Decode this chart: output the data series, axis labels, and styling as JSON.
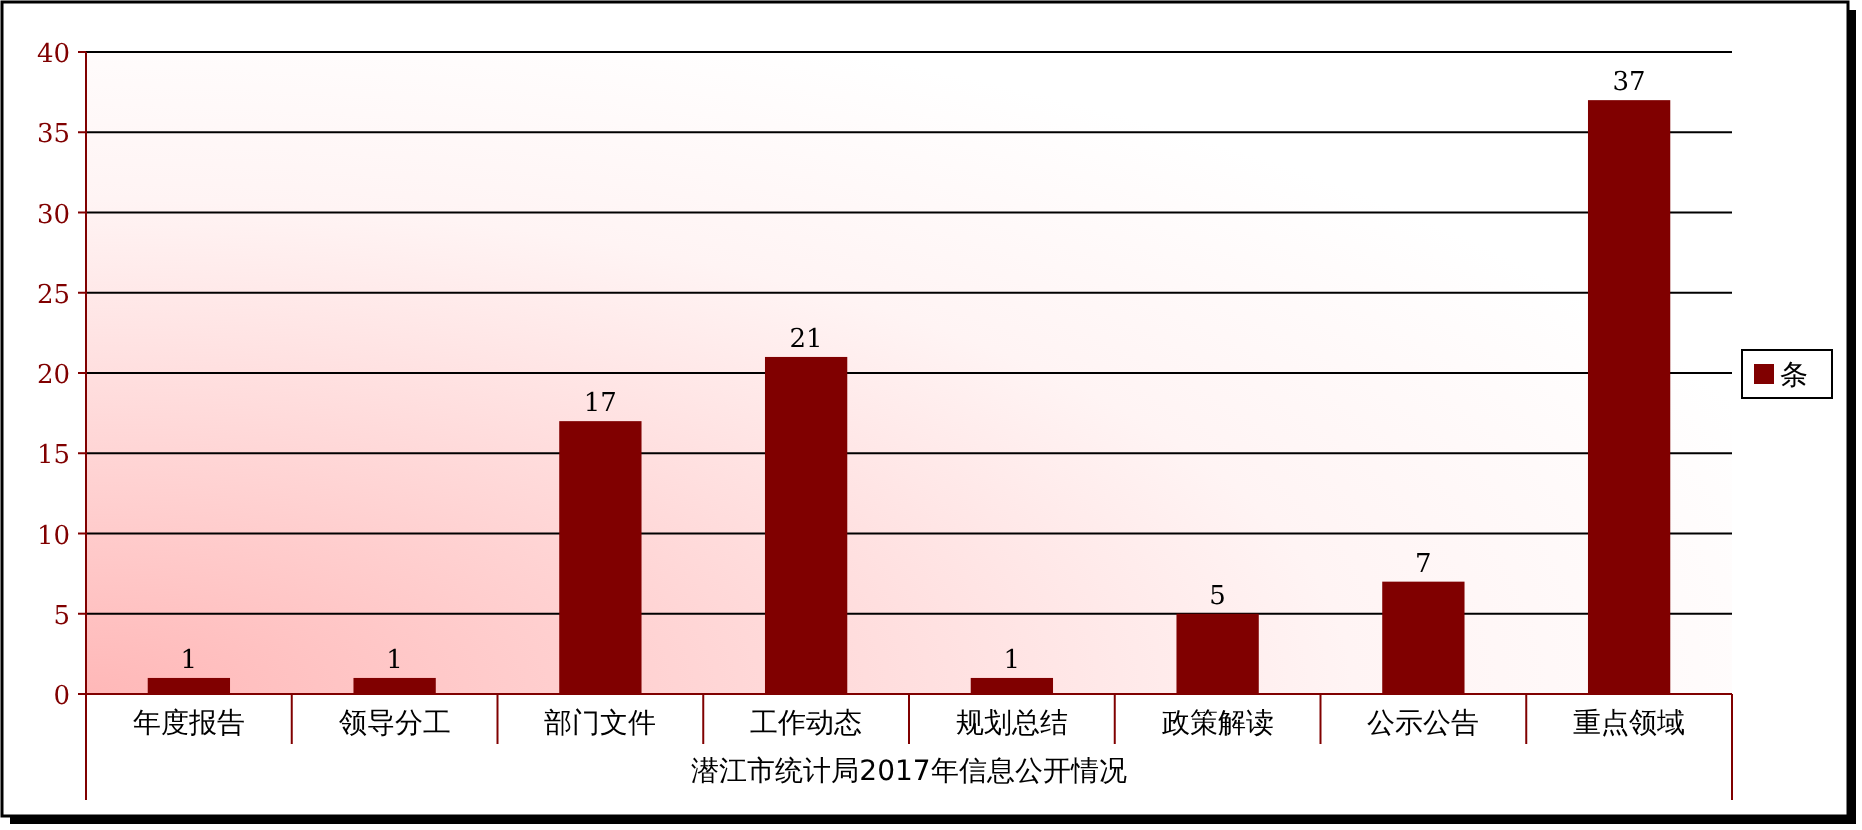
{
  "chart_data": {
    "type": "bar",
    "xlabel": "潜江市统计局2017年信息公开情况",
    "categories": [
      "年度报告",
      "领导分工",
      "部门文件",
      "工作动态",
      "规划总结",
      "政策解读",
      "公示公告",
      "重点领域"
    ],
    "series": [
      {
        "name": "条",
        "color": "#800000",
        "values": [
          1,
          1,
          17,
          21,
          1,
          5,
          7,
          37
        ]
      }
    ],
    "ylim": [
      0,
      40
    ],
    "yticks": [
      0,
      5,
      10,
      15,
      20,
      25,
      30,
      35,
      40
    ],
    "grid": "y",
    "legend": "right",
    "data_labels": true
  }
}
